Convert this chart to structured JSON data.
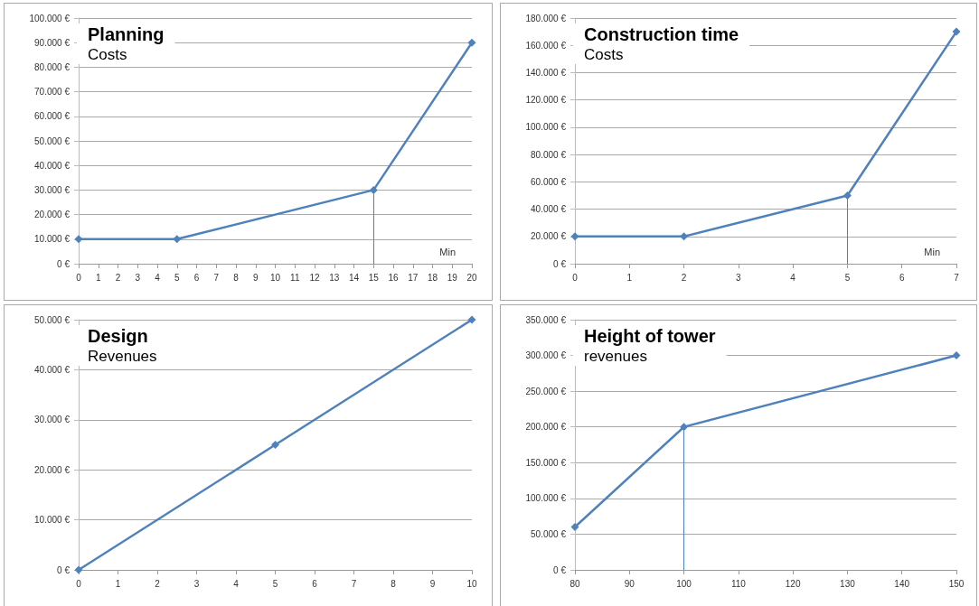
{
  "chart_data": [
    {
      "type": "line",
      "title": "Planning",
      "subtitle": "Costs",
      "annotations": [
        "Min"
      ],
      "grid": "y",
      "marker": "diamond",
      "line_style": "solid",
      "series": [
        {
          "color": "#4f81bd",
          "x": [
            0,
            5,
            15,
            20
          ],
          "values": [
            10000,
            10000,
            30000,
            90000
          ]
        }
      ],
      "ref_lines": [
        {
          "axis": "x",
          "value": 15,
          "color": "#4f81bd"
        }
      ],
      "xlim": [
        0,
        20
      ],
      "xticks": [
        0,
        1,
        2,
        3,
        4,
        5,
        6,
        7,
        8,
        9,
        10,
        11,
        12,
        13,
        14,
        15,
        16,
        17,
        18,
        19,
        20
      ],
      "ylim": [
        0,
        100000
      ],
      "yticks": [
        {
          "value": 0,
          "label": "0 €"
        },
        {
          "value": 10000,
          "label": "10.000 €"
        },
        {
          "value": 20000,
          "label": "20.000 €"
        },
        {
          "value": 30000,
          "label": "30.000 €"
        },
        {
          "value": 40000,
          "label": "40.000 €"
        },
        {
          "value": 50000,
          "label": "50.000 €"
        },
        {
          "value": 60000,
          "label": "60.000 €"
        },
        {
          "value": 70000,
          "label": "70.000 €"
        },
        {
          "value": 80000,
          "label": "80.000 €"
        },
        {
          "value": 90000,
          "label": "90.000 €"
        },
        {
          "value": 100000,
          "label": "100.000 €"
        }
      ]
    },
    {
      "type": "line",
      "title": "Construction time",
      "subtitle": "Costs",
      "annotations": [
        "Min"
      ],
      "grid": "y",
      "marker": "diamond",
      "line_style": "solid",
      "series": [
        {
          "color": "#4f81bd",
          "x": [
            0,
            2,
            5,
            7
          ],
          "values": [
            20000,
            20000,
            50000,
            170000
          ]
        }
      ],
      "ref_lines": [
        {
          "axis": "x",
          "value": 5,
          "color": "#4f81bd"
        }
      ],
      "xlim": [
        0,
        7
      ],
      "xticks": [
        0,
        1,
        2,
        3,
        4,
        5,
        6,
        7
      ],
      "ylim": [
        0,
        180000
      ],
      "yticks": [
        {
          "value": 0,
          "label": "0 €"
        },
        {
          "value": 20000,
          "label": "20.000 €"
        },
        {
          "value": 40000,
          "label": "40.000 €"
        },
        {
          "value": 60000,
          "label": "60.000 €"
        },
        {
          "value": 80000,
          "label": "80.000 €"
        },
        {
          "value": 100000,
          "label": "100.000 €"
        },
        {
          "value": 120000,
          "label": "120.000 €"
        },
        {
          "value": 140000,
          "label": "140.000 €"
        },
        {
          "value": 160000,
          "label": "160.000 €"
        },
        {
          "value": 180000,
          "label": "180.000 €"
        }
      ]
    },
    {
      "type": "line",
      "title": "Design",
      "subtitle": "Revenues",
      "grid": "y",
      "marker": "diamond",
      "line_style": "solid",
      "series": [
        {
          "color": "#4f81bd",
          "x": [
            0,
            5,
            10
          ],
          "values": [
            0,
            25000,
            50000
          ]
        }
      ],
      "xlim": [
        0,
        10
      ],
      "xticks": [
        0,
        1,
        2,
        3,
        4,
        5,
        6,
        7,
        8,
        9,
        10
      ],
      "ylim": [
        0,
        50000
      ],
      "yticks": [
        {
          "value": 0,
          "label": "0 €"
        },
        {
          "value": 10000,
          "label": "10.000 €"
        },
        {
          "value": 20000,
          "label": "20.000 €"
        },
        {
          "value": 30000,
          "label": "30.000 €"
        },
        {
          "value": 40000,
          "label": "40.000 €"
        },
        {
          "value": 50000,
          "label": "50.000 €"
        }
      ]
    },
    {
      "type": "line",
      "title": "Height of tower",
      "subtitle": "revenues",
      "grid": "y",
      "marker": "diamond",
      "line_style": "solid",
      "series": [
        {
          "color": "#4f81bd",
          "x": [
            80,
            100,
            150
          ],
          "values": [
            60000,
            200000,
            300000
          ]
        }
      ],
      "ref_lines": [
        {
          "axis": "x",
          "value": 100,
          "color": "#4f81bd"
        }
      ],
      "xlim": [
        80,
        150
      ],
      "xticks": [
        80,
        90,
        100,
        110,
        120,
        130,
        140,
        150
      ],
      "ylim": [
        0,
        350000
      ],
      "yticks": [
        {
          "value": 0,
          "label": "0 €"
        },
        {
          "value": 50000,
          "label": "50.000 €"
        },
        {
          "value": 100000,
          "label": "100.000 €"
        },
        {
          "value": 150000,
          "label": "150.000 €"
        },
        {
          "value": 200000,
          "label": "200.000 €"
        },
        {
          "value": 250000,
          "label": "250.000 €"
        },
        {
          "value": 300000,
          "label": "300.000 €"
        },
        {
          "value": 350000,
          "label": "350.000 €"
        }
      ]
    }
  ]
}
